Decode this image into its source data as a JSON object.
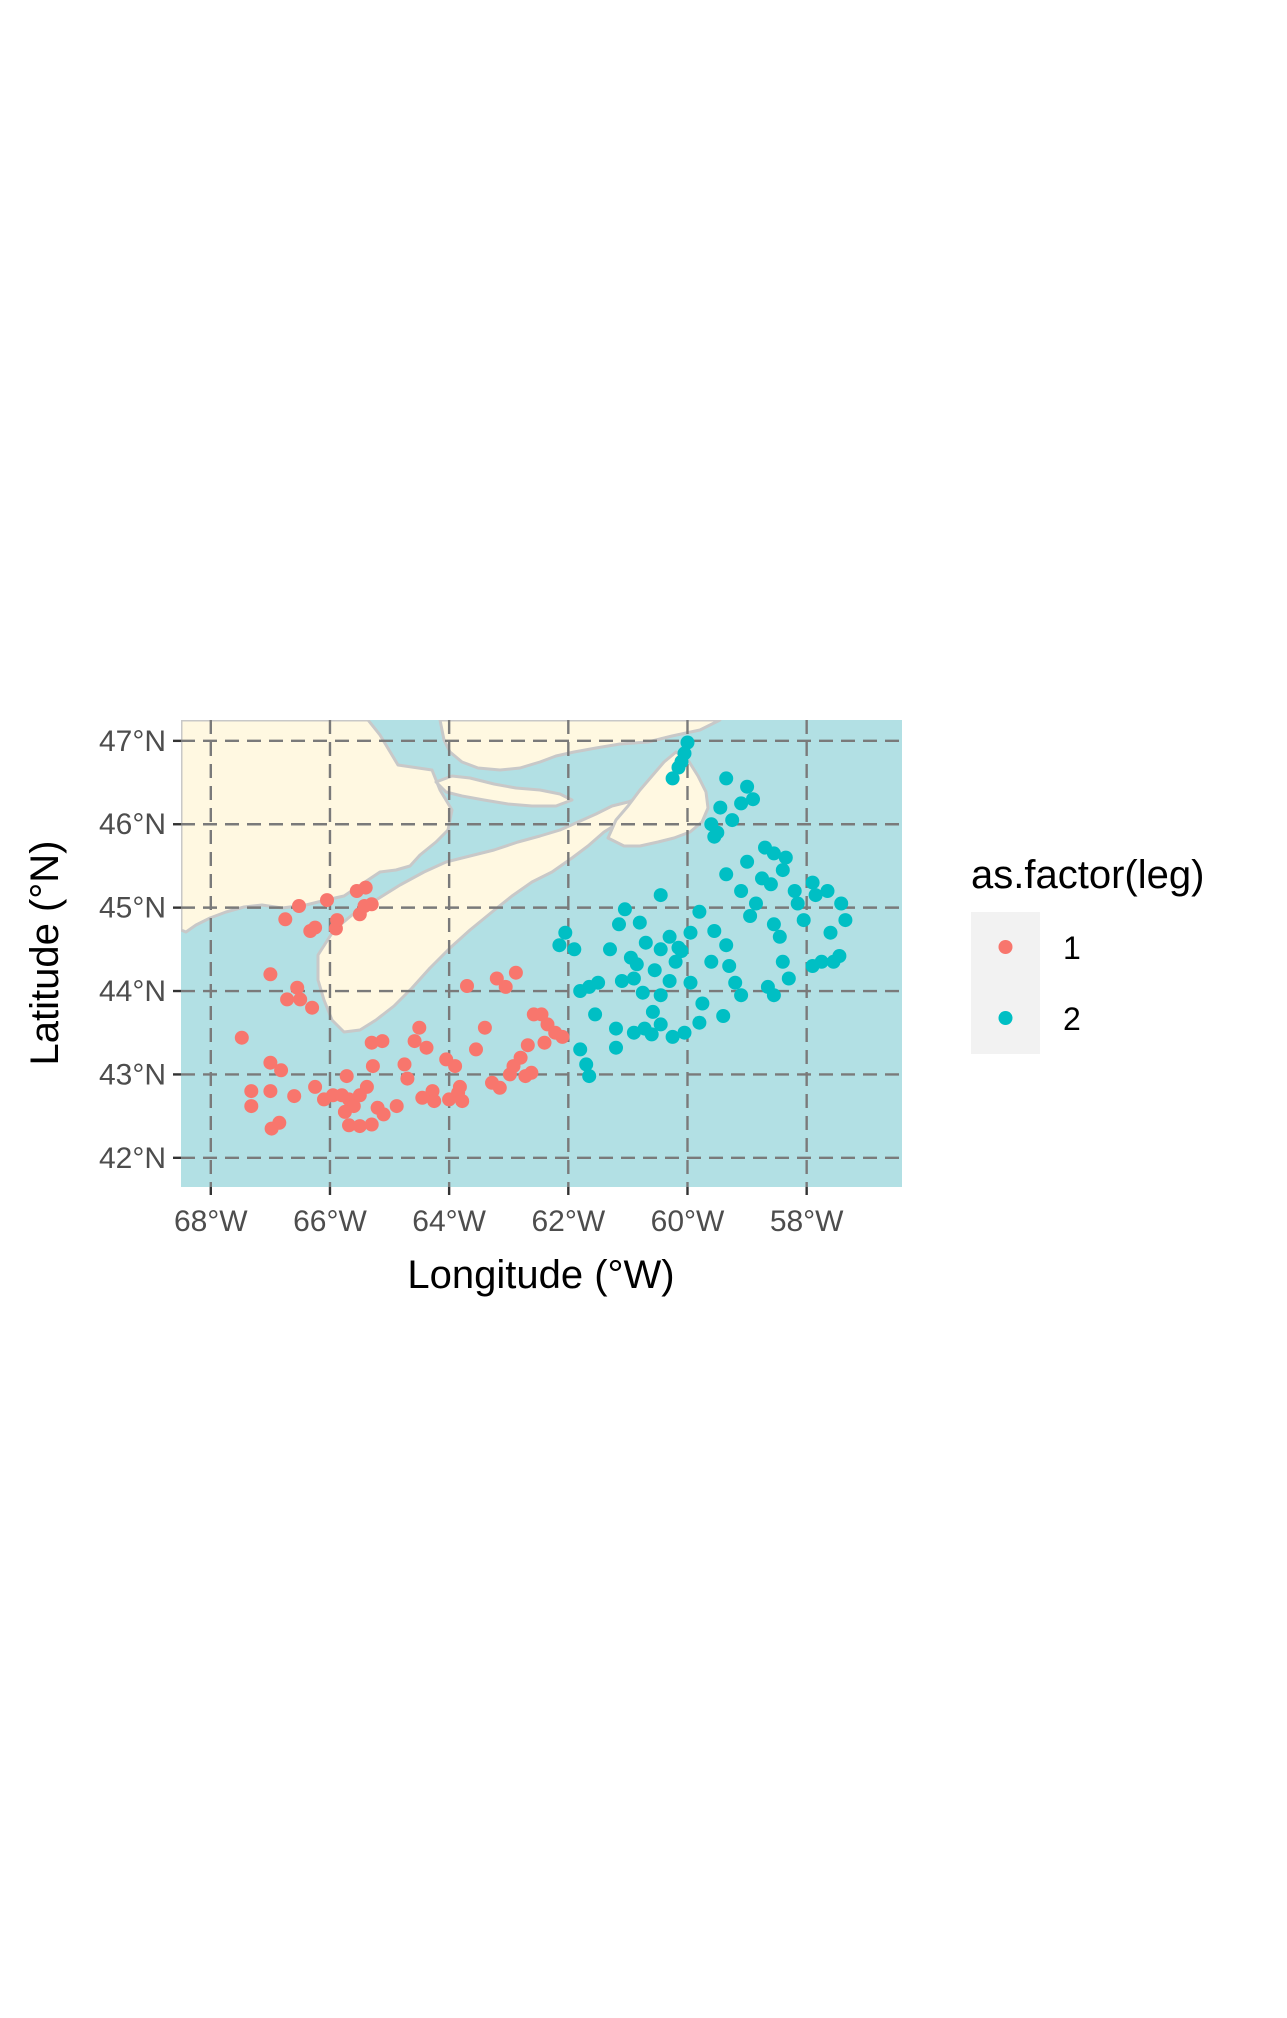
{
  "colors": {
    "ocean": "#b2e0e4",
    "land": "#fff8e1",
    "coast": "#c8c8c8",
    "grid": "#7a7a7a",
    "leg1": "#f8766d",
    "leg2": "#00bfc4",
    "legend_key_bg": "#f2f2f2"
  },
  "chart_data": {
    "type": "scatter",
    "xlabel": "Longitude (°W)",
    "ylabel": "Latitude (°N)",
    "xlim": [
      -68.5,
      -56.4
    ],
    "ylim": [
      41.65,
      47.25
    ],
    "x_ticks": [
      {
        "value": -68,
        "label": "68°W"
      },
      {
        "value": -66,
        "label": "66°W"
      },
      {
        "value": -64,
        "label": "64°W"
      },
      {
        "value": -62,
        "label": "62°W"
      },
      {
        "value": -60,
        "label": "60°W"
      },
      {
        "value": -58,
        "label": "58°W"
      }
    ],
    "y_ticks": [
      {
        "value": 42,
        "label": "42°N"
      },
      {
        "value": 43,
        "label": "43°N"
      },
      {
        "value": 44,
        "label": "44°N"
      },
      {
        "value": 45,
        "label": "45°N"
      },
      {
        "value": 46,
        "label": "46°N"
      },
      {
        "value": 47,
        "label": "47°N"
      }
    ],
    "grid": "dashed",
    "legend": {
      "title": "as.factor(leg)",
      "position": "right",
      "entries": [
        {
          "label": "1",
          "color": "#f8766d"
        },
        {
          "label": "2",
          "color": "#00bfc4"
        }
      ]
    },
    "series": [
      {
        "name": "1",
        "color": "#f8766d",
        "points": [
          [
            -67.48,
            43.44
          ],
          [
            -67.32,
            42.8
          ],
          [
            -67.32,
            42.62
          ],
          [
            -67.0,
            42.8
          ],
          [
            -67.0,
            43.14
          ],
          [
            -66.98,
            42.35
          ],
          [
            -66.85,
            42.42
          ],
          [
            -66.82,
            43.05
          ],
          [
            -66.6,
            42.74
          ],
          [
            -67.0,
            44.2
          ],
          [
            -66.75,
            44.86
          ],
          [
            -66.52,
            45.02
          ],
          [
            -66.33,
            44.72
          ],
          [
            -66.25,
            44.76
          ],
          [
            -66.05,
            45.09
          ],
          [
            -65.9,
            44.75
          ],
          [
            -65.88,
            44.85
          ],
          [
            -65.55,
            45.2
          ],
          [
            -65.4,
            45.24
          ],
          [
            -65.5,
            44.92
          ],
          [
            -65.42,
            45.02
          ],
          [
            -65.3,
            45.04
          ],
          [
            -66.55,
            44.04
          ],
          [
            -66.72,
            43.9
          ],
          [
            -66.5,
            43.9
          ],
          [
            -66.3,
            43.8
          ],
          [
            -66.25,
            42.85
          ],
          [
            -66.1,
            42.7
          ],
          [
            -65.95,
            42.75
          ],
          [
            -65.8,
            42.75
          ],
          [
            -65.68,
            42.7
          ],
          [
            -65.72,
            42.98
          ],
          [
            -65.6,
            42.62
          ],
          [
            -65.5,
            42.75
          ],
          [
            -65.38,
            42.85
          ],
          [
            -65.28,
            43.1
          ],
          [
            -65.2,
            42.6
          ],
          [
            -65.68,
            42.39
          ],
          [
            -65.5,
            42.38
          ],
          [
            -65.3,
            42.4
          ],
          [
            -65.1,
            42.52
          ],
          [
            -65.12,
            43.4
          ],
          [
            -64.88,
            42.62
          ],
          [
            -64.75,
            43.12
          ],
          [
            -64.7,
            42.95
          ],
          [
            -64.58,
            43.4
          ],
          [
            -64.5,
            43.56
          ],
          [
            -64.38,
            43.32
          ],
          [
            -64.28,
            42.8
          ],
          [
            -64.25,
            42.68
          ],
          [
            -64.05,
            43.18
          ],
          [
            -63.9,
            43.1
          ],
          [
            -63.85,
            42.78
          ],
          [
            -63.78,
            42.68
          ],
          [
            -63.7,
            44.06
          ],
          [
            -63.55,
            43.3
          ],
          [
            -63.4,
            43.56
          ],
          [
            -63.28,
            42.9
          ],
          [
            -63.15,
            42.84
          ],
          [
            -62.98,
            43.0
          ],
          [
            -62.92,
            43.1
          ],
          [
            -62.8,
            43.2
          ],
          [
            -62.68,
            43.35
          ],
          [
            -63.2,
            44.15
          ],
          [
            -63.05,
            44.05
          ],
          [
            -62.88,
            44.22
          ],
          [
            -62.58,
            43.72
          ],
          [
            -62.45,
            43.72
          ],
          [
            -62.35,
            43.6
          ],
          [
            -62.22,
            43.5
          ],
          [
            -62.1,
            43.45
          ],
          [
            -62.62,
            43.02
          ],
          [
            -62.4,
            43.38
          ],
          [
            -64.45,
            42.72
          ],
          [
            -64.0,
            42.7
          ],
          [
            -63.82,
            42.85
          ],
          [
            -62.72,
            42.98
          ],
          [
            -65.75,
            42.55
          ],
          [
            -65.3,
            43.38
          ]
        ]
      },
      {
        "name": "2",
        "color": "#00bfc4",
        "points": [
          [
            -62.15,
            44.55
          ],
          [
            -62.05,
            44.7
          ],
          [
            -61.9,
            44.5
          ],
          [
            -61.8,
            44.0
          ],
          [
            -61.65,
            44.05
          ],
          [
            -61.55,
            43.72
          ],
          [
            -61.8,
            43.3
          ],
          [
            -61.7,
            43.12
          ],
          [
            -61.65,
            42.98
          ],
          [
            -61.2,
            43.55
          ],
          [
            -61.2,
            43.32
          ],
          [
            -61.1,
            44.12
          ],
          [
            -60.95,
            44.4
          ],
          [
            -60.85,
            44.32
          ],
          [
            -61.05,
            44.98
          ],
          [
            -60.8,
            44.82
          ],
          [
            -60.7,
            44.58
          ],
          [
            -60.55,
            44.25
          ],
          [
            -60.45,
            44.5
          ],
          [
            -60.75,
            43.98
          ],
          [
            -60.9,
            43.5
          ],
          [
            -60.72,
            43.55
          ],
          [
            -60.58,
            43.75
          ],
          [
            -60.45,
            43.95
          ],
          [
            -60.3,
            44.12
          ],
          [
            -60.2,
            44.35
          ],
          [
            -60.15,
            44.52
          ],
          [
            -60.45,
            45.15
          ],
          [
            -60.3,
            44.65
          ],
          [
            -60.1,
            44.48
          ],
          [
            -59.95,
            44.7
          ],
          [
            -59.8,
            44.95
          ],
          [
            -59.95,
            44.1
          ],
          [
            -59.75,
            43.85
          ],
          [
            -59.8,
            43.62
          ],
          [
            -60.05,
            43.5
          ],
          [
            -60.25,
            43.45
          ],
          [
            -60.45,
            43.6
          ],
          [
            -60.6,
            43.48
          ],
          [
            -59.6,
            44.35
          ],
          [
            -59.55,
            44.72
          ],
          [
            -59.35,
            44.55
          ],
          [
            -59.3,
            44.3
          ],
          [
            -59.2,
            44.1
          ],
          [
            -59.1,
            43.95
          ],
          [
            -59.4,
            43.7
          ],
          [
            -59.35,
            45.4
          ],
          [
            -59.1,
            45.2
          ],
          [
            -59.0,
            45.55
          ],
          [
            -58.95,
            44.9
          ],
          [
            -58.85,
            45.05
          ],
          [
            -58.75,
            45.35
          ],
          [
            -58.6,
            45.28
          ],
          [
            -58.55,
            44.8
          ],
          [
            -58.45,
            44.65
          ],
          [
            -58.4,
            44.35
          ],
          [
            -58.3,
            44.15
          ],
          [
            -58.65,
            44.05
          ],
          [
            -58.55,
            43.95
          ],
          [
            -59.5,
            45.9
          ],
          [
            -59.45,
            46.2
          ],
          [
            -59.25,
            46.05
          ],
          [
            -59.1,
            46.25
          ],
          [
            -58.9,
            46.3
          ],
          [
            -59.0,
            46.45
          ],
          [
            -59.35,
            46.55
          ],
          [
            -59.6,
            46.0
          ],
          [
            -59.55,
            45.85
          ],
          [
            -58.7,
            45.72
          ],
          [
            -58.55,
            45.65
          ],
          [
            -58.35,
            45.6
          ],
          [
            -58.2,
            45.2
          ],
          [
            -58.15,
            45.05
          ],
          [
            -58.05,
            44.85
          ],
          [
            -57.9,
            44.3
          ],
          [
            -57.75,
            44.35
          ],
          [
            -57.65,
            45.2
          ],
          [
            -57.6,
            44.7
          ],
          [
            -57.55,
            44.35
          ],
          [
            -57.45,
            44.42
          ],
          [
            -57.42,
            45.05
          ],
          [
            -57.35,
            44.85
          ],
          [
            -60.0,
            46.98
          ],
          [
            -60.05,
            46.85
          ],
          [
            -60.1,
            46.75
          ],
          [
            -60.15,
            46.68
          ],
          [
            -60.25,
            46.55
          ],
          [
            -58.4,
            45.45
          ],
          [
            -57.9,
            45.3
          ],
          [
            -57.85,
            45.15
          ],
          [
            -61.3,
            44.5
          ],
          [
            -61.5,
            44.1
          ],
          [
            -61.15,
            44.8
          ],
          [
            -60.9,
            44.15
          ]
        ]
      }
    ]
  }
}
